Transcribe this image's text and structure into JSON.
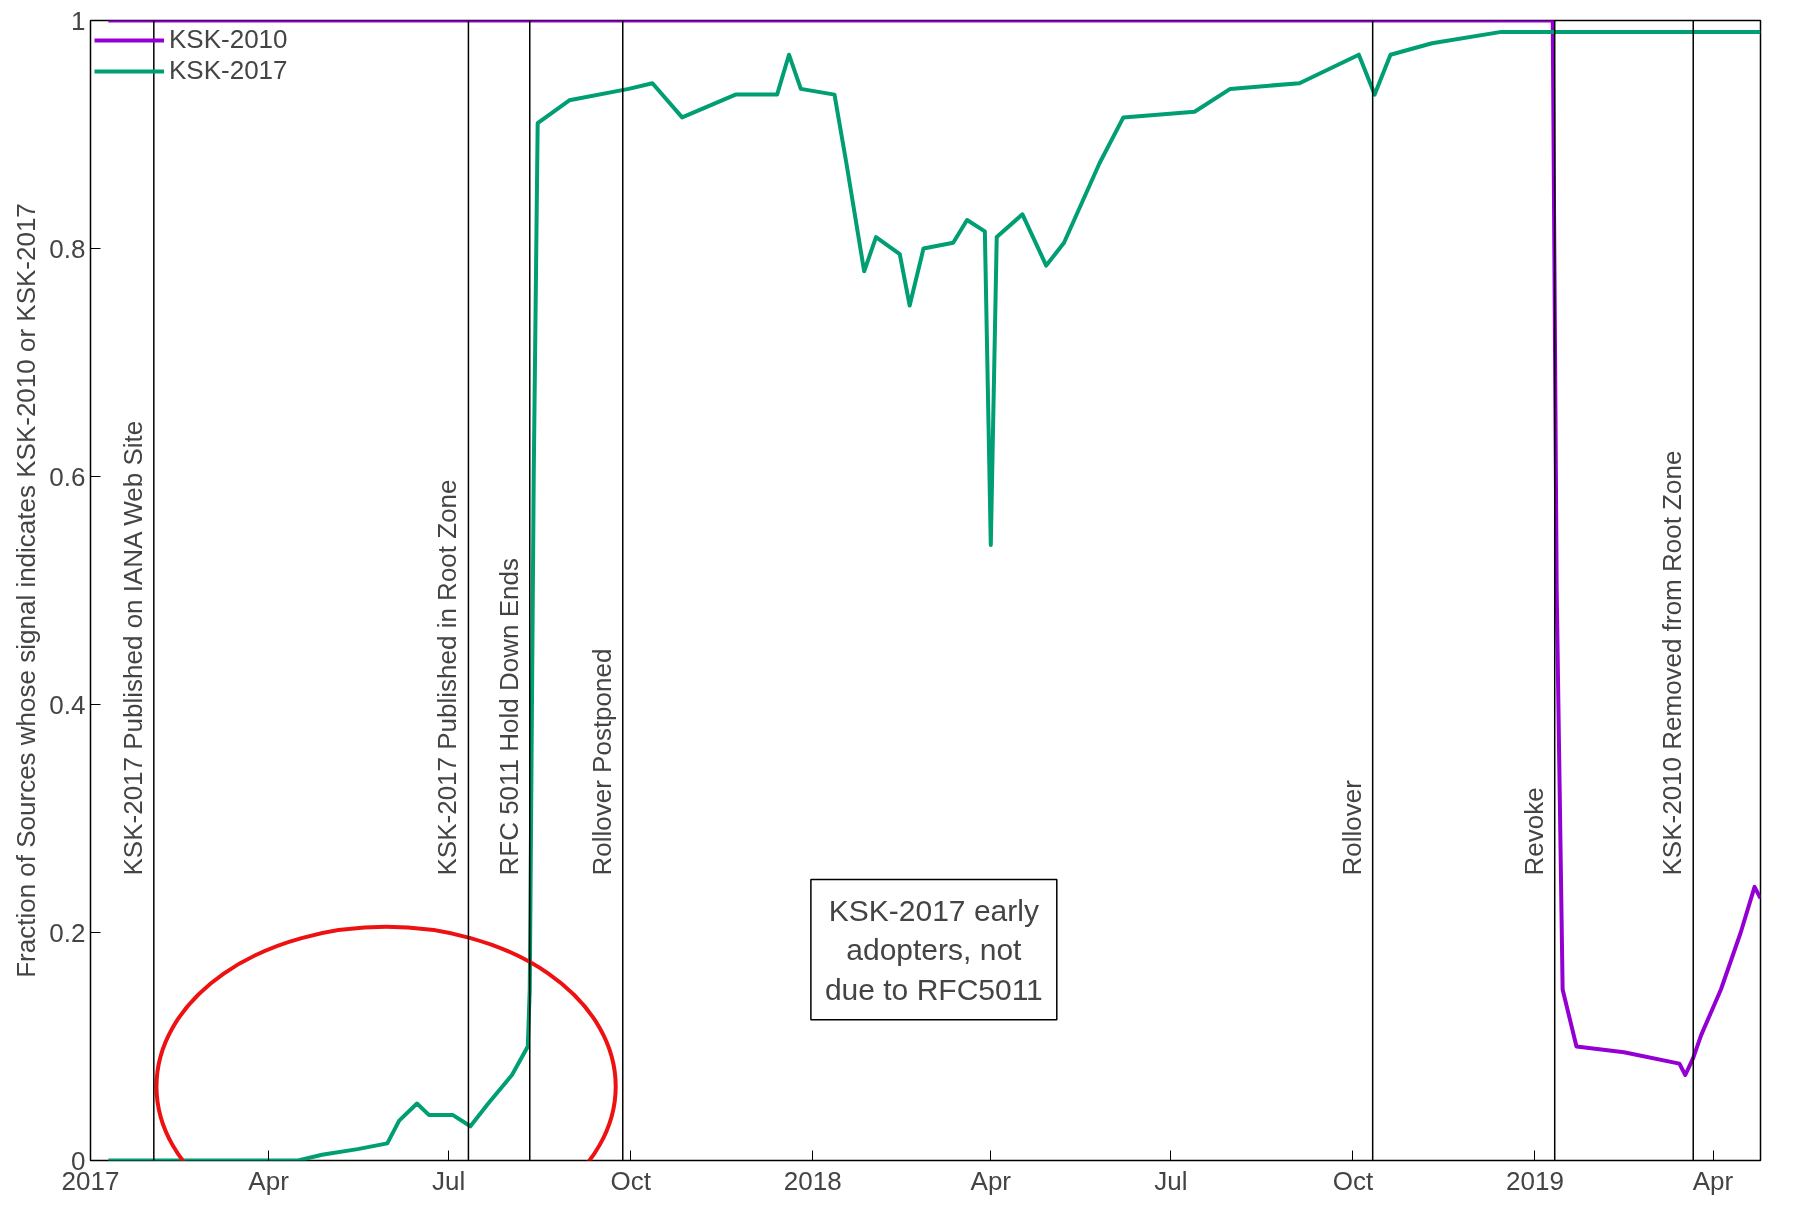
{
  "chart_data": {
    "type": "line",
    "ylabel": "Fraction of Sources whose signal indicates KSK-2010 or KSK-2017",
    "xlim": [
      "2017-01-01",
      "2019-04-25"
    ],
    "xticks": [
      {
        "value": "2017-01-01",
        "label": "2017"
      },
      {
        "value": "2017-04-01",
        "label": "Apr"
      },
      {
        "value": "2017-07-01",
        "label": "Jul"
      },
      {
        "value": "2017-10-01",
        "label": "Oct"
      },
      {
        "value": "2018-01-01",
        "label": "2018"
      },
      {
        "value": "2018-04-01",
        "label": "Apr"
      },
      {
        "value": "2018-07-01",
        "label": "Jul"
      },
      {
        "value": "2018-10-01",
        "label": "Oct"
      },
      {
        "value": "2019-01-01",
        "label": "2019"
      },
      {
        "value": "2019-04-01",
        "label": "Apr"
      }
    ],
    "ylim": [
      0,
      1
    ],
    "yticks": [
      0,
      0.2,
      0.4,
      0.6,
      0.8,
      1
    ],
    "grid": false,
    "legend": "top left",
    "line_style": "solid",
    "series": [
      {
        "name": "KSK-2010",
        "color": "#9400d3",
        "x": [
          "2017-01-10",
          "2019-01-10",
          "2019-01-12",
          "2019-01-15",
          "2019-01-22",
          "2019-02-15",
          "2019-03-15",
          "2019-03-18",
          "2019-03-22",
          "2019-03-26",
          "2019-04-05",
          "2019-04-15",
          "2019-04-22",
          "2019-04-25"
        ],
        "values": [
          1.0,
          1.0,
          0.5,
          0.15,
          0.1,
          0.095,
          0.085,
          0.075,
          0.09,
          0.11,
          0.15,
          0.2,
          0.24,
          0.23
        ]
      },
      {
        "name": "KSK-2017",
        "color": "#009e73",
        "x": [
          "2017-01-10",
          "2017-04-16",
          "2017-04-28",
          "2017-05-16",
          "2017-05-31",
          "2017-06-06",
          "2017-06-15",
          "2017-06-21",
          "2017-07-03",
          "2017-07-12",
          "2017-07-21",
          "2017-08-02",
          "2017-08-10",
          "2017-08-11",
          "2017-08-13",
          "2017-08-15",
          "2017-08-31",
          "2017-09-30",
          "2017-10-12",
          "2017-10-27",
          "2017-11-23",
          "2017-12-14",
          "2017-12-20",
          "2017-12-26",
          "2018-01-12",
          "2018-01-18",
          "2018-01-27",
          "2018-02-02",
          "2018-02-14",
          "2018-02-19",
          "2018-02-26",
          "2018-03-13",
          "2018-03-20",
          "2018-03-29",
          "2018-04-01",
          "2018-04-04",
          "2018-04-17",
          "2018-04-29",
          "2018-05-08",
          "2018-05-26",
          "2018-06-07",
          "2018-07-13",
          "2018-07-31",
          "2018-09-04",
          "2018-10-04",
          "2018-10-12",
          "2018-10-20",
          "2018-11-10",
          "2018-12-15",
          "2019-01-11",
          "2019-04-25"
        ],
        "values": [
          0,
          0,
          0.005,
          0.01,
          0.015,
          0.035,
          0.05,
          0.04,
          0.04,
          0.03,
          0.05,
          0.075,
          0.1,
          0.15,
          0.6,
          0.91,
          0.93,
          0.94,
          0.945,
          0.915,
          0.935,
          0.935,
          0.97,
          0.94,
          0.935,
          0.875,
          0.78,
          0.81,
          0.795,
          0.75,
          0.8,
          0.805,
          0.825,
          0.815,
          0.54,
          0.81,
          0.83,
          0.785,
          0.805,
          0.875,
          0.915,
          0.92,
          0.94,
          0.945,
          0.97,
          0.935,
          0.97,
          0.98,
          0.99,
          0.99,
          0.99
        ]
      }
    ],
    "ref_lines": [
      {
        "axis": "x",
        "value": "2017-02-02",
        "label": "KSK-2017 Published on IANA Web Site",
        "color": "#000000"
      },
      {
        "axis": "x",
        "value": "2017-07-11",
        "label": "KSK-2017 Published in Root Zone",
        "color": "#000000"
      },
      {
        "axis": "x",
        "value": "2017-08-11",
        "label": "RFC 5011 Hold Down Ends",
        "color": "#000000"
      },
      {
        "axis": "x",
        "value": "2017-09-27",
        "label": "Rollover Postponed",
        "color": "#000000"
      },
      {
        "axis": "x",
        "value": "2018-10-11",
        "label": "Rollover",
        "color": "#000000"
      },
      {
        "axis": "x",
        "value": "2019-01-11",
        "label": "Revoke",
        "color": "#000000"
      },
      {
        "axis": "x",
        "value": "2019-03-22",
        "label": "KSK-2010 Removed from Root Zone",
        "color": "#000000"
      }
    ],
    "annotations": [
      "KSK-2017 early adopters, not due to RFC5011"
    ]
  }
}
